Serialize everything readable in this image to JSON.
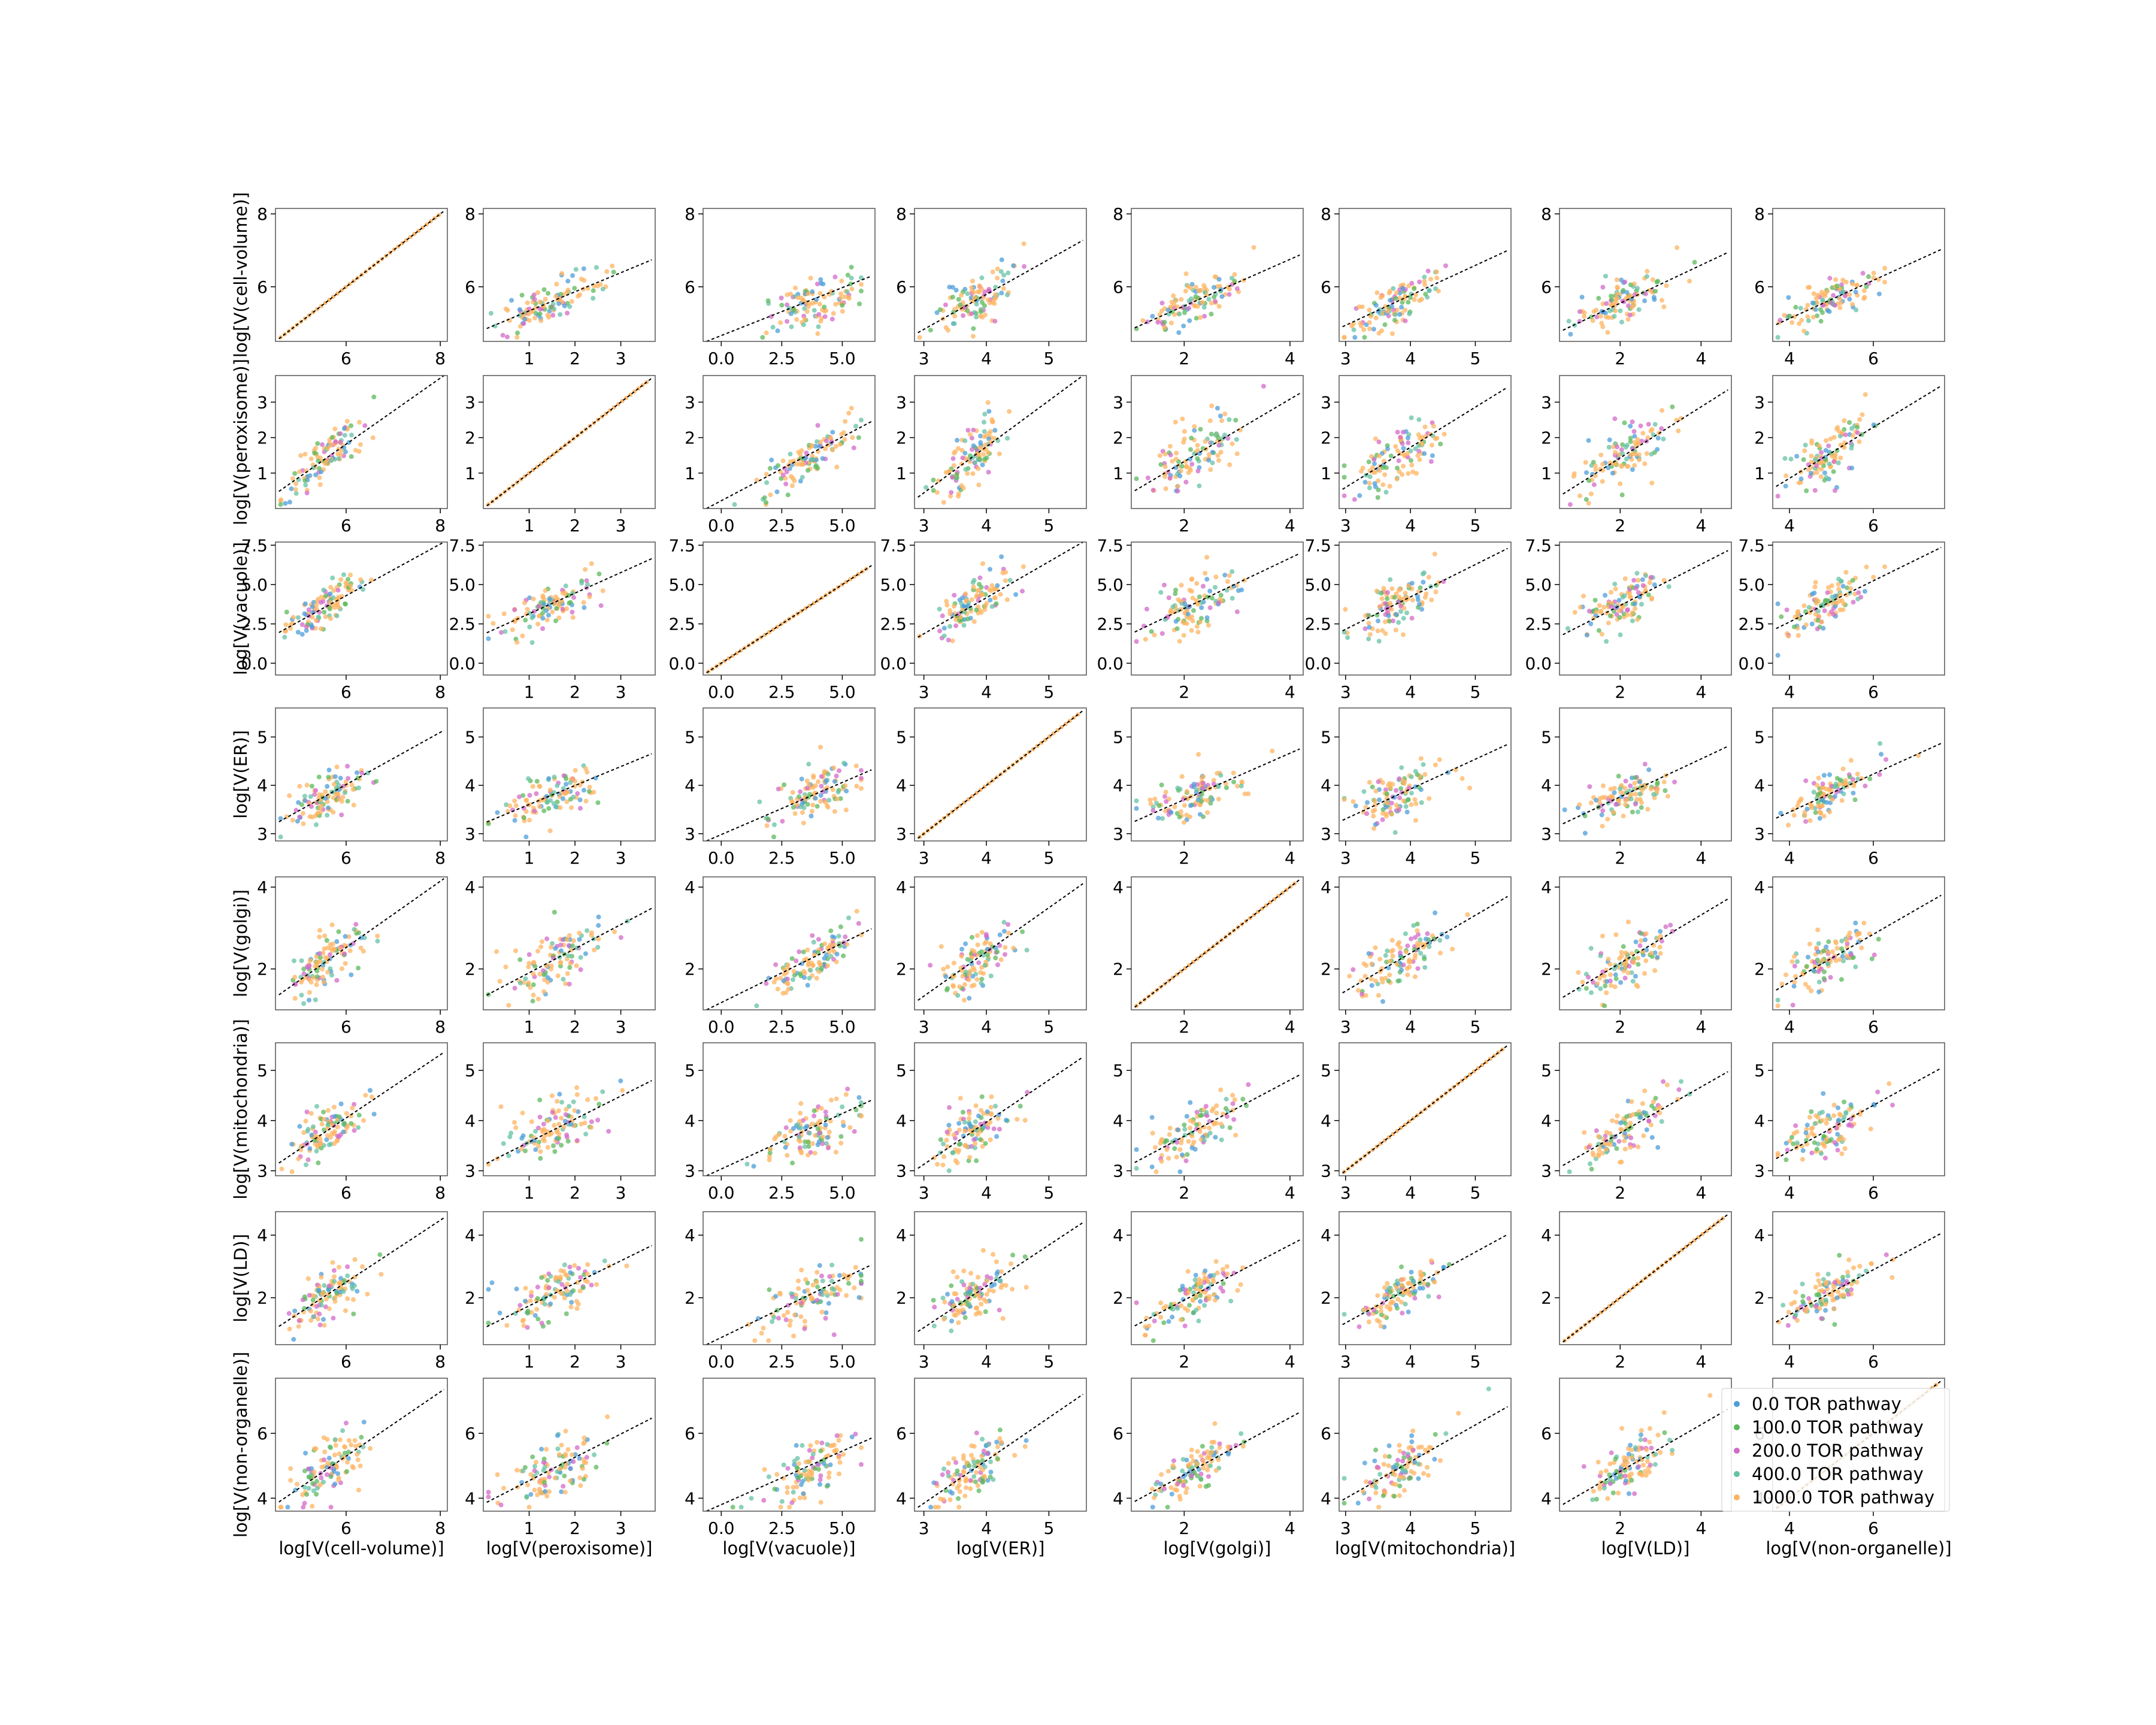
{
  "chart_data": {
    "type": "scatter",
    "variables": [
      {
        "key": "cell-volume",
        "label": "log[V(cell-volume)]",
        "range": [
          4.5,
          8.15
        ],
        "ticks": [
          6,
          8
        ],
        "tick_labels": [
          "6",
          "8"
        ],
        "mean": 5.6,
        "sd": 0.4
      },
      {
        "key": "peroxisome",
        "label": "log[V(peroxisome)]",
        "range": [
          0.0,
          3.75
        ],
        "ticks": [
          1,
          2,
          3
        ],
        "tick_labels": [
          "1",
          "2",
          "3"
        ],
        "mean": 1.5,
        "sd": 0.55
      },
      {
        "key": "vacuole",
        "label": "log[V(vacuole)]",
        "range": [
          -0.75,
          6.35
        ],
        "ticks": [
          0,
          2.5,
          5
        ],
        "tick_labels": [
          "0.0",
          "2.5",
          "5.0"
        ],
        "mean": 3.8,
        "sd": 1.0
      },
      {
        "key": "ER",
        "label": "log[V(ER)]",
        "range": [
          2.85,
          5.6
        ],
        "ticks": [
          3,
          4,
          5
        ],
        "tick_labels": [
          "3",
          "4",
          "5"
        ],
        "mean": 3.8,
        "sd": 0.3
      },
      {
        "key": "golgi",
        "label": "log[V(golgi)]",
        "range": [
          1.0,
          4.25
        ],
        "ticks": [
          2,
          4
        ],
        "tick_labels": [
          "2",
          "4"
        ],
        "mean": 2.2,
        "sd": 0.45
      },
      {
        "key": "mitochondria",
        "label": "log[V(mitochondria)]",
        "range": [
          2.9,
          5.55
        ],
        "ticks": [
          3,
          4,
          5
        ],
        "tick_labels": [
          "3",
          "4",
          "5"
        ],
        "mean": 3.8,
        "sd": 0.35
      },
      {
        "key": "LD",
        "label": "log[V(LD)]",
        "range": [
          0.5,
          4.75
        ],
        "ticks": [
          2,
          4
        ],
        "tick_labels": [
          "2",
          "4"
        ],
        "mean": 2.1,
        "sd": 0.55
      },
      {
        "key": "non-organelle",
        "label": "log[V(non-organelle)]",
        "range": [
          3.6,
          7.7
        ],
        "ticks": [
          4,
          6
        ],
        "tick_labels": [
          "4",
          "6"
        ],
        "mean": 4.9,
        "sd": 0.55
      }
    ],
    "y_tick_overrides": {
      "vacuole": {
        "ticks": [
          0,
          2.5,
          5,
          7.5
        ],
        "tick_labels": [
          "0.0",
          "2.5",
          "5.0",
          "7.5"
        ],
        "range": [
          -0.75,
          7.7
        ]
      }
    },
    "series": [
      {
        "name": "0.0 TOR pathway",
        "color": "#4c9ed9"
      },
      {
        "name": "100.0 TOR pathway",
        "color": "#5cb85c"
      },
      {
        "name": "200.0 TOR pathway",
        "color": "#d36ac8"
      },
      {
        "name": "400.0 TOR pathway",
        "color": "#66c2a5"
      },
      {
        "name": "1000.0 TOR pathway",
        "color": "#fdb462"
      }
    ],
    "fit_line": {
      "color": "#000000",
      "style": "dashed"
    },
    "legend_position": "bottom-right",
    "grid": false
  }
}
